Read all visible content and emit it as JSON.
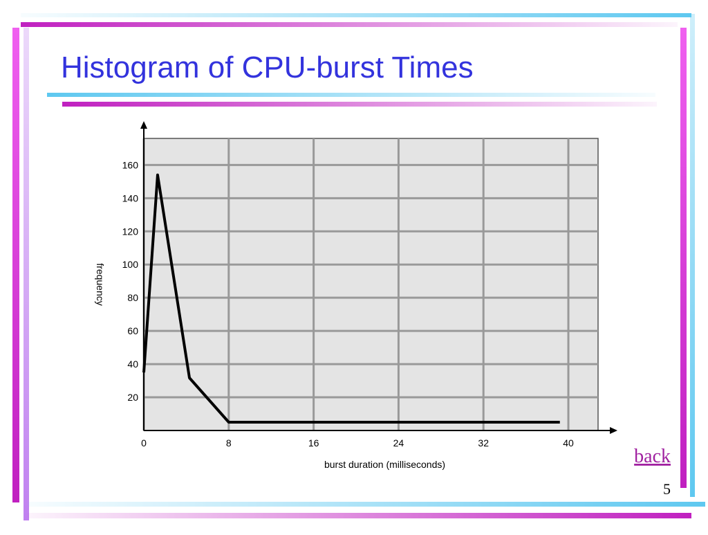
{
  "chart_data": {
    "type": "line",
    "title": "Histogram of CPU-burst Times",
    "x_label": "burst duration (milliseconds)",
    "y_label": "frequency",
    "x": [
      0,
      1.3,
      4.3,
      8,
      39.2
    ],
    "series": [
      {
        "color": "#000000",
        "values": [
          35,
          154,
          31.7,
          5,
          5
        ]
      }
    ],
    "xlim": [
      0,
      42.8
    ],
    "ylim": [
      0,
      176
    ],
    "xticks": [
      0,
      8,
      16,
      24,
      32,
      40
    ],
    "yticks": [
      20,
      40,
      60,
      80,
      100,
      120,
      140,
      160
    ],
    "grid": true
  },
  "link": "back",
  "page_number": "5"
}
